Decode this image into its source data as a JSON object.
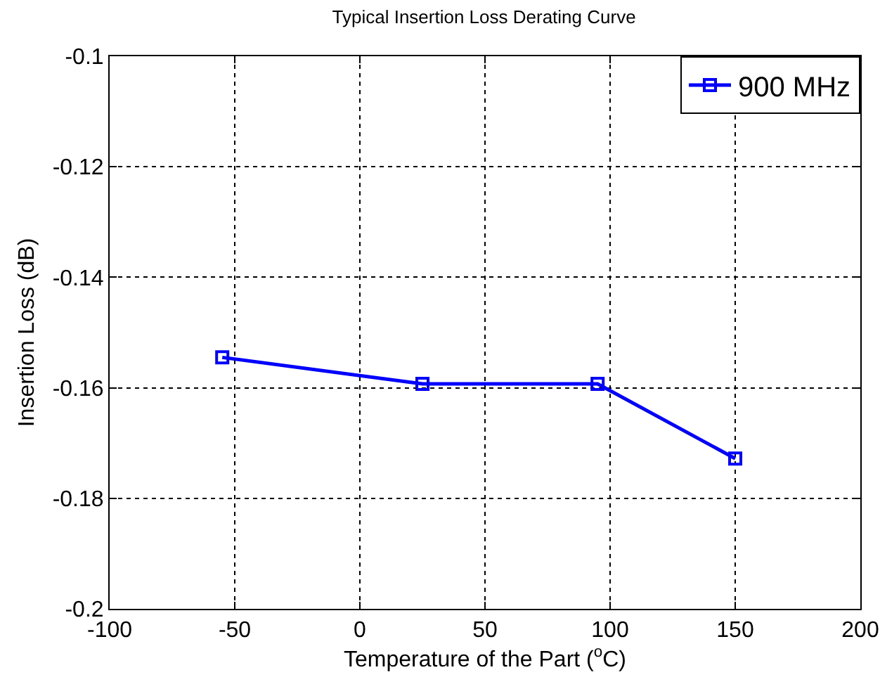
{
  "chart_data": {
    "type": "line",
    "title": "Typical Insertion Loss Derating Curve",
    "xlabel": "Temperature of the Part ($^{o}$C)",
    "ylabel": "Insertion Loss (dB)",
    "x": [
      -55,
      25,
      95,
      150
    ],
    "series": [
      {
        "name": "900 MHz",
        "color": "#0000ff",
        "values": [
          -0.1545,
          -0.1593,
          -0.1593,
          -0.1728
        ]
      }
    ],
    "xlim": [
      -100,
      200
    ],
    "xticks": [
      -100,
      -50,
      0,
      50,
      100,
      150,
      200
    ],
    "ylim": [
      -0.2,
      -0.1
    ],
    "yticks": [
      -0.2,
      -0.18,
      -0.16,
      -0.14,
      -0.12,
      -0.1
    ],
    "grid": true,
    "legend": "top right",
    "marker": "square",
    "line_style": "solid"
  }
}
